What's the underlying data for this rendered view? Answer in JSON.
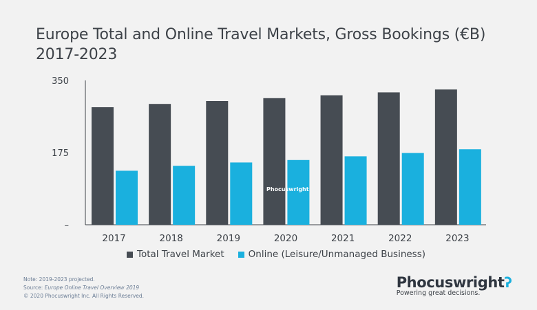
{
  "title_line1": "Europe Total and Online Travel Markets, Gross Bookings (€B)",
  "title_line2": "2017-2023",
  "colors": {
    "total": "#464c53",
    "online": "#1ab0de",
    "axis": "#3d4248"
  },
  "chart_data": {
    "type": "bar",
    "categories": [
      "2017",
      "2018",
      "2019",
      "2020",
      "2021",
      "2022",
      "2023"
    ],
    "series": [
      {
        "name": "Total Travel Market",
        "values": [
          285,
          293,
          300,
          307,
          314,
          321,
          328
        ]
      },
      {
        "name": "Online (Leisure/Unmanaged Business)",
        "values": [
          131,
          143,
          151,
          157,
          166,
          174,
          183
        ]
      }
    ],
    "ylim": [
      0,
      350
    ],
    "ytick_labels": [
      "350",
      "175",
      "–"
    ],
    "ytick_values": [
      350,
      175,
      0
    ],
    "legend_position": "bottom"
  },
  "watermark": "Phocuswright",
  "footnote": {
    "note": "Note: 2019-2023 projected.",
    "source_prefix": "Source: ",
    "source_title": "Europe Online Travel Overview 2019",
    "copyright": "© 2020  Phocuswright Inc. All Rights Reserved."
  },
  "brand": {
    "name": "Phocuswright",
    "tagline": "Powering great decisions."
  }
}
